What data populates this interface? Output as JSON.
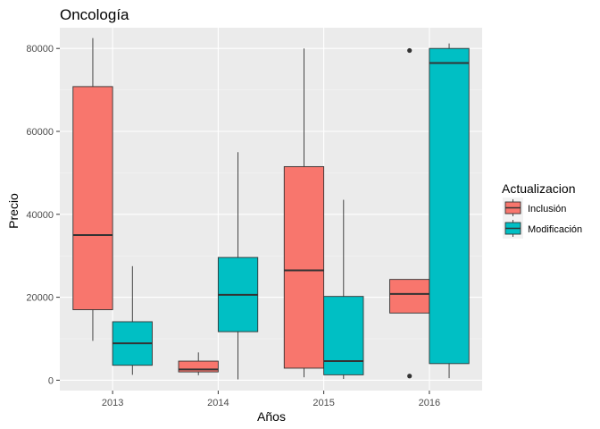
{
  "chart_data": {
    "type": "boxplot",
    "title": "Oncología",
    "xlabel": "Años",
    "ylabel": "Precio",
    "categories": [
      "2013",
      "2014",
      "2015",
      "2016"
    ],
    "ylim": [
      -2500,
      85000
    ],
    "yticks": [
      0,
      20000,
      40000,
      60000,
      80000
    ],
    "ytick_labels": [
      "0",
      "20000",
      "40000",
      "60000",
      "80000"
    ],
    "grid": true,
    "legend": {
      "title": "Actualizacion",
      "placement": "right"
    },
    "series": [
      {
        "name": "Inclusión",
        "color": "#F8766D",
        "boxes": [
          {
            "category": "2013",
            "min": 9500,
            "q1": 17000,
            "median": 35000,
            "q3": 70800,
            "max": 82500,
            "outliers": []
          },
          {
            "category": "2014",
            "min": 1200,
            "q1": 2000,
            "median": 2600,
            "q3": 4600,
            "max": 6700,
            "outliers": []
          },
          {
            "category": "2015",
            "min": 700,
            "q1": 2900,
            "median": 26500,
            "q3": 51500,
            "max": 80000,
            "outliers": []
          },
          {
            "category": "2016",
            "min": 16200,
            "q1": 16200,
            "median": 20800,
            "q3": 24300,
            "max": 24300,
            "outliers": [
              1000,
              79500
            ]
          }
        ]
      },
      {
        "name": "Modificación",
        "color": "#00BFC4",
        "boxes": [
          {
            "category": "2013",
            "min": 1300,
            "q1": 3600,
            "median": 8900,
            "q3": 14100,
            "max": 27500,
            "outliers": []
          },
          {
            "category": "2014",
            "min": 200,
            "q1": 11700,
            "median": 20600,
            "q3": 29600,
            "max": 55000,
            "outliers": []
          },
          {
            "category": "2015",
            "min": 300,
            "q1": 1300,
            "median": 4600,
            "q3": 20200,
            "max": 43500,
            "outliers": []
          },
          {
            "category": "2016",
            "min": 500,
            "q1": 4000,
            "median": 76500,
            "q3": 80000,
            "max": 81200,
            "outliers": []
          }
        ]
      }
    ]
  }
}
